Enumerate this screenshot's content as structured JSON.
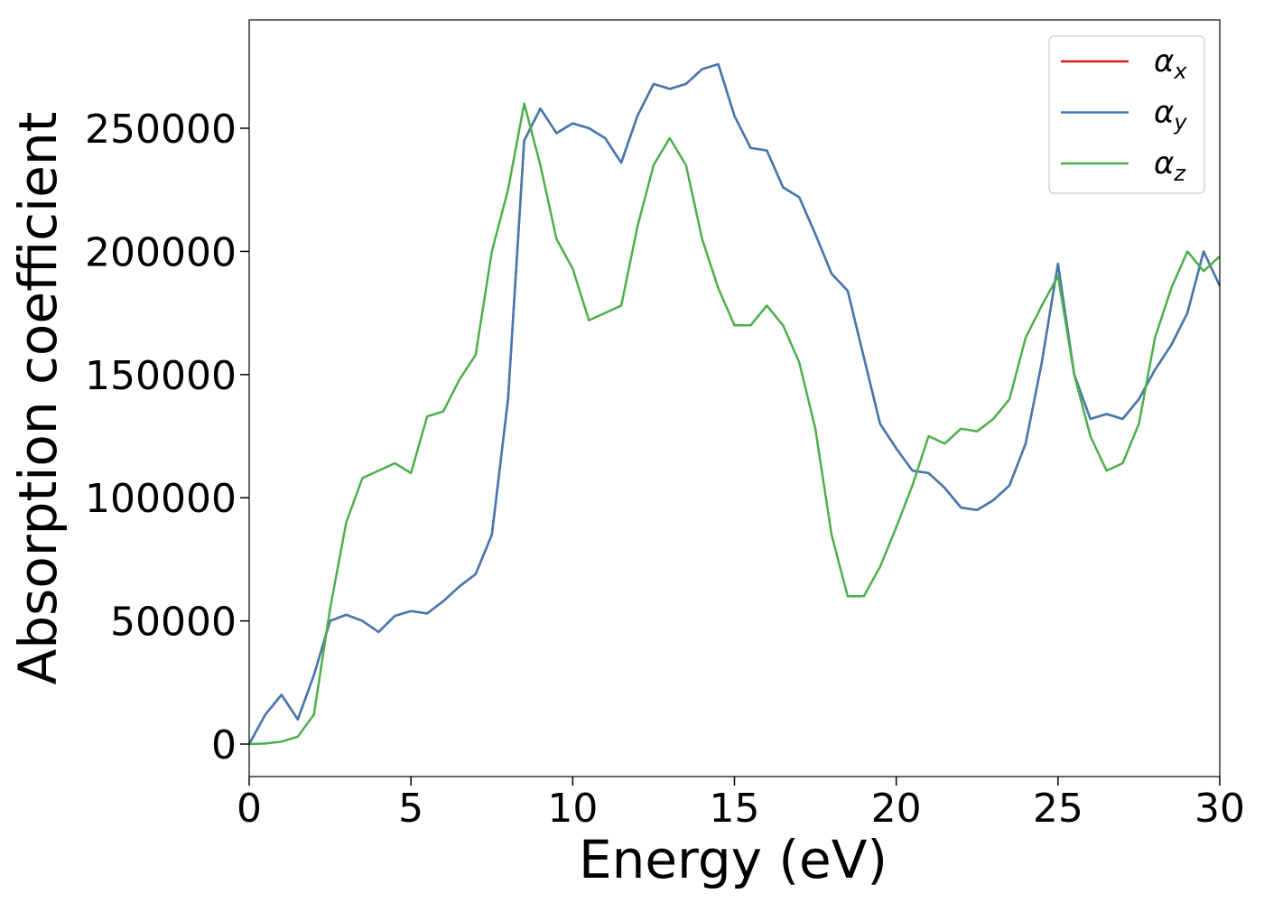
{
  "chart_data": {
    "type": "line",
    "xlabel": "Energy (eV)",
    "ylabel": "Absorption coefficient",
    "x": [
      0,
      0.5,
      1,
      1.5,
      2,
      2.5,
      3,
      3.5,
      4,
      4.5,
      5,
      5.5,
      6,
      6.5,
      7,
      7.5,
      8,
      8.5,
      9,
      9.5,
      10,
      10.5,
      11,
      11.5,
      12,
      12.5,
      13,
      13.5,
      14,
      14.5,
      15,
      15.5,
      16,
      16.5,
      17,
      17.5,
      18,
      18.5,
      19,
      19.5,
      20,
      20.5,
      21,
      21.5,
      22,
      22.5,
      23,
      23.5,
      24,
      24.5,
      25,
      25.5,
      26,
      26.5,
      27,
      27.5,
      28,
      28.5,
      29,
      29.5,
      30
    ],
    "series": [
      {
        "name": "αx",
        "color": "#e41a1c",
        "values": [
          0,
          12000,
          20000,
          10000,
          28000,
          50000,
          52500,
          50000,
          45500,
          52000,
          54000,
          53000,
          58000,
          64000,
          69000,
          85000,
          140000,
          245000,
          258000,
          248000,
          252000,
          250000,
          246000,
          236000,
          255000,
          268000,
          266000,
          268000,
          274000,
          276000,
          255000,
          242000,
          241000,
          226000,
          222000,
          207000,
          191000,
          184000,
          157000,
          130000,
          120000,
          111000,
          110000,
          104000,
          96000,
          95000,
          99000,
          105000,
          122000,
          155000,
          195000,
          150000,
          132000,
          134000,
          132000,
          140000,
          152000,
          162000,
          175000,
          200000,
          186000
        ]
      },
      {
        "name": "αy",
        "color": "#3f7bb3",
        "values": [
          0,
          12000,
          20000,
          10000,
          28000,
          50000,
          52500,
          50000,
          45500,
          52000,
          54000,
          53000,
          58000,
          64000,
          69000,
          85000,
          140000,
          245000,
          258000,
          248000,
          252000,
          250000,
          246000,
          236000,
          255000,
          268000,
          266000,
          268000,
          274000,
          276000,
          255000,
          242000,
          241000,
          226000,
          222000,
          207000,
          191000,
          184000,
          157000,
          130000,
          120000,
          111000,
          110000,
          104000,
          96000,
          95000,
          99000,
          105000,
          122000,
          155000,
          195000,
          150000,
          132000,
          134000,
          132000,
          140000,
          152000,
          162000,
          175000,
          200000,
          186000
        ]
      },
      {
        "name": "αz",
        "color": "#4daf4a",
        "values": [
          0,
          200,
          1000,
          3000,
          12000,
          55000,
          90000,
          108000,
          111000,
          114000,
          110000,
          133000,
          135000,
          148000,
          158000,
          200000,
          225000,
          260000,
          235000,
          205000,
          193000,
          172000,
          175000,
          178000,
          210000,
          235000,
          246000,
          235000,
          205000,
          185000,
          170000,
          170000,
          178000,
          170000,
          155000,
          128000,
          85000,
          60000,
          60000,
          72000,
          88000,
          105000,
          125000,
          122000,
          128000,
          127000,
          132000,
          140000,
          165000,
          178000,
          190000,
          150000,
          125000,
          111000,
          114000,
          130000,
          165000,
          185000,
          200000,
          192000,
          198000
        ]
      }
    ],
    "xlim": [
      0,
      30
    ],
    "xticks": [
      0,
      5,
      10,
      15,
      20,
      25,
      30
    ],
    "ylim": [
      -13200,
      294000
    ],
    "yticks": [
      0,
      50000,
      100000,
      150000,
      200000,
      250000
    ],
    "legend": "upper right",
    "grid": false
  }
}
